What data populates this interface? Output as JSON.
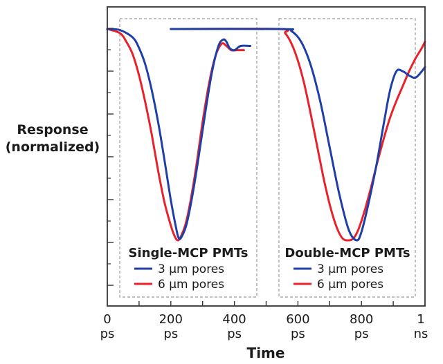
{
  "chart_data": {
    "type": "line",
    "xlabel": "Time",
    "ylabel": [
      "Response",
      "(normalized)"
    ],
    "x_ticks": [
      {
        "value": 0,
        "line1": "0",
        "line2": "ps"
      },
      {
        "value": 200,
        "line1": "200",
        "line2": "ps"
      },
      {
        "value": 400,
        "line1": "400",
        "line2": "ps"
      },
      {
        "value": 600,
        "line1": "600",
        "line2": "ps"
      },
      {
        "value": 800,
        "line1": "800",
        "line2": "ps"
      },
      {
        "value": 1000,
        "line1": "1",
        "line2": "ns"
      }
    ],
    "xlim": [
      0,
      1000
    ],
    "ylim": [
      0,
      1
    ],
    "grid": false,
    "panels": [
      {
        "title": "Single-MCP PMTs",
        "legend": [
          "3 µm pores",
          "6 µm pores"
        ],
        "series": [
          {
            "name": "3 µm pores",
            "color": "#1f3fa8",
            "x": [
              0,
              40,
              80,
              100,
              120,
              140,
              160,
              180,
              200,
              215,
              225,
              235,
              250,
              270,
              290,
              310,
              330,
              350,
              365,
              375,
              385,
              400,
              420,
              450
            ],
            "y": [
              0,
              0.005,
              0.04,
              0.09,
              0.17,
              0.29,
              0.44,
              0.62,
              0.81,
              0.93,
              0.99,
              0.98,
              0.92,
              0.77,
              0.58,
              0.38,
              0.2,
              0.08,
              0.05,
              0.06,
              0.09,
              0.1,
              0.08,
              0.08
            ]
          },
          {
            "name": "6 µm pores",
            "color": "#e8222b",
            "x": [
              0,
              40,
              60,
              80,
              100,
              120,
              140,
              160,
              180,
              200,
              212,
              222,
              232,
              245,
              260,
              280,
              300,
              320,
              340,
              360,
              375,
              390,
              410,
              430
            ],
            "y": [
              0,
              0.02,
              0.06,
              0.12,
              0.22,
              0.35,
              0.5,
              0.67,
              0.82,
              0.93,
              0.98,
              1.0,
              0.98,
              0.93,
              0.83,
              0.65,
              0.44,
              0.26,
              0.13,
              0.07,
              0.08,
              0.1,
              0.1,
              0.1
            ]
          }
        ]
      },
      {
        "title": "Double-MCP PMTs",
        "legend": [
          "3 µm pores",
          "6 µm pores"
        ],
        "series": [
          {
            "name": "3 µm pores",
            "color": "#1f3fa8",
            "x": [
              200,
              550,
              580,
              610,
              640,
              670,
              700,
              730,
              760,
              785,
              800,
              820,
              845,
              870,
              890,
              910,
              930,
              950,
              970,
              990,
              1010
            ],
            "y": [
              0,
              0,
              0.01,
              0.06,
              0.17,
              0.34,
              0.56,
              0.78,
              0.95,
              1.0,
              0.96,
              0.84,
              0.66,
              0.45,
              0.29,
              0.2,
              0.2,
              0.22,
              0.23,
              0.2,
              0.18
            ]
          },
          {
            "name": "6 µm pores",
            "color": "#e8222b",
            "x": [
              200,
              540,
              560,
              580,
              600,
              620,
              640,
              660,
              680,
              700,
              720,
              740,
              760,
              775,
              790,
              810,
              830,
              850,
              870,
              890,
              910,
              930,
              950,
              970,
              990,
              1010
            ],
            "y": [
              0,
              0,
              0.02,
              0.07,
              0.15,
              0.26,
              0.4,
              0.55,
              0.7,
              0.83,
              0.93,
              0.99,
              1.0,
              0.99,
              0.95,
              0.86,
              0.75,
              0.63,
              0.52,
              0.42,
              0.34,
              0.27,
              0.2,
              0.14,
              0.09,
              0.06
            ]
          }
        ]
      }
    ],
    "colors": {
      "series_3um": "#1f3fa8",
      "series_6um": "#e8222b",
      "axis": "#333333",
      "panel_box": "#9a9a9a"
    }
  }
}
